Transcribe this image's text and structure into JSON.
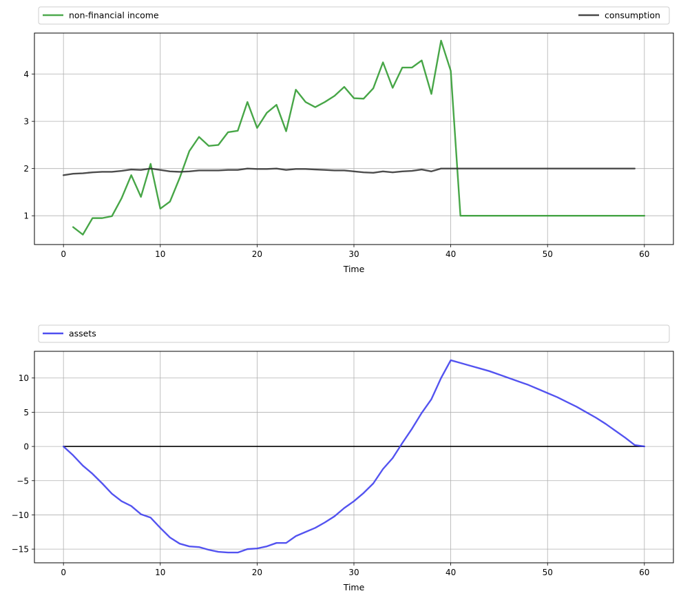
{
  "chart_data": [
    {
      "type": "line",
      "xlabel": "Time",
      "ylabel": "",
      "xlim": [
        -3,
        63
      ],
      "ylim": [
        0.39,
        4.87
      ],
      "xticks": [
        0,
        10,
        20,
        30,
        40,
        50,
        60
      ],
      "yticks": [
        1,
        2,
        3,
        4
      ],
      "grid": true,
      "legend": "top, above plot",
      "series": [
        {
          "name": "non-financial income",
          "color": "#2e9a2e",
          "x": [
            1,
            2,
            3,
            4,
            5,
            6,
            7,
            8,
            9,
            10,
            11,
            12,
            13,
            14,
            15,
            16,
            17,
            18,
            19,
            20,
            21,
            22,
            23,
            24,
            25,
            26,
            27,
            28,
            29,
            30,
            31,
            32,
            33,
            34,
            35,
            36,
            37,
            38,
            39,
            40,
            41,
            42,
            43,
            44,
            45,
            46,
            47,
            48,
            49,
            50,
            51,
            52,
            53,
            54,
            55,
            56,
            57,
            58,
            59,
            60
          ],
          "values": [
            0.76,
            0.6,
            0.95,
            0.95,
            0.99,
            1.37,
            1.86,
            1.4,
            2.1,
            1.15,
            1.3,
            1.8,
            2.37,
            2.67,
            2.48,
            2.5,
            2.77,
            2.8,
            3.41,
            2.86,
            3.18,
            3.35,
            2.79,
            3.67,
            3.41,
            3.3,
            3.41,
            3.54,
            3.73,
            3.49,
            3.48,
            3.7,
            4.25,
            3.71,
            4.14,
            4.14,
            4.29,
            3.58,
            4.71,
            4.07,
            1.0,
            1.0,
            1.0,
            1.0,
            1.0,
            1.0,
            1.0,
            1.0,
            1.0,
            1.0,
            1.0,
            1.0,
            1.0,
            1.0,
            1.0,
            1.0,
            1.0,
            1.0,
            1.0,
            1.0
          ]
        },
        {
          "name": "consumption",
          "color": "#333333",
          "x": [
            0,
            1,
            2,
            3,
            4,
            5,
            6,
            7,
            8,
            9,
            10,
            11,
            12,
            13,
            14,
            15,
            16,
            17,
            18,
            19,
            20,
            21,
            22,
            23,
            24,
            25,
            26,
            27,
            28,
            29,
            30,
            31,
            32,
            33,
            34,
            35,
            36,
            37,
            38,
            39,
            40,
            41,
            42,
            43,
            44,
            45,
            46,
            47,
            48,
            49,
            50,
            51,
            52,
            53,
            54,
            55,
            56,
            57,
            58,
            59
          ],
          "values": [
            1.86,
            1.89,
            1.9,
            1.92,
            1.93,
            1.93,
            1.95,
            1.98,
            1.97,
            2.0,
            1.97,
            1.94,
            1.93,
            1.94,
            1.96,
            1.96,
            1.96,
            1.97,
            1.97,
            2.0,
            1.99,
            1.99,
            2.0,
            1.97,
            1.99,
            1.99,
            1.98,
            1.97,
            1.96,
            1.96,
            1.94,
            1.92,
            1.91,
            1.94,
            1.92,
            1.94,
            1.95,
            1.98,
            1.94,
            2.0,
            2.0,
            2.0,
            2.0,
            2.0,
            2.0,
            2.0,
            2.0,
            2.0,
            2.0,
            2.0,
            2.0,
            2.0,
            2.0,
            2.0,
            2.0,
            2.0,
            2.0,
            2.0,
            2.0,
            2.0
          ]
        }
      ]
    },
    {
      "type": "line",
      "xlabel": "Time",
      "ylabel": "",
      "xlim": [
        -3,
        63
      ],
      "ylim": [
        -17.0,
        13.9
      ],
      "xticks": [
        0,
        10,
        20,
        30,
        40,
        50,
        60
      ],
      "yticks": [
        -15,
        -10,
        -5,
        0,
        5,
        10
      ],
      "grid": true,
      "legend": "top, above plot",
      "reference_line": {
        "y": 0,
        "x_from": 0,
        "x_to": 60,
        "color": "#000000"
      },
      "series": [
        {
          "name": "assets",
          "color": "#3b3bee",
          "x": [
            0,
            1,
            2,
            3,
            4,
            5,
            6,
            7,
            8,
            9,
            10,
            11,
            12,
            13,
            14,
            15,
            16,
            17,
            18,
            19,
            20,
            21,
            22,
            23,
            24,
            25,
            26,
            27,
            28,
            29,
            30,
            31,
            32,
            33,
            34,
            35,
            36,
            37,
            38,
            39,
            40,
            41,
            42,
            43,
            44,
            45,
            46,
            47,
            48,
            49,
            50,
            51,
            52,
            53,
            54,
            55,
            56,
            57,
            58,
            59,
            60
          ],
          "values": [
            0.0,
            -1.3,
            -2.8,
            -4.0,
            -5.4,
            -6.9,
            -8.0,
            -8.7,
            -9.9,
            -10.4,
            -11.9,
            -13.3,
            -14.2,
            -14.6,
            -14.7,
            -15.1,
            -15.4,
            -15.5,
            -15.5,
            -15.0,
            -14.9,
            -14.6,
            -14.1,
            -14.1,
            -13.1,
            -12.5,
            -11.9,
            -11.1,
            -10.2,
            -9.0,
            -8.0,
            -6.8,
            -5.4,
            -3.3,
            -1.7,
            0.5,
            2.6,
            4.9,
            6.9,
            10.0,
            12.6,
            12.2,
            11.8,
            11.4,
            11.0,
            10.5,
            10.0,
            9.5,
            9.0,
            8.4,
            7.8,
            7.2,
            6.5,
            5.8,
            5.0,
            4.2,
            3.3,
            2.3,
            1.3,
            0.2,
            0.0
          ]
        }
      ]
    }
  ]
}
